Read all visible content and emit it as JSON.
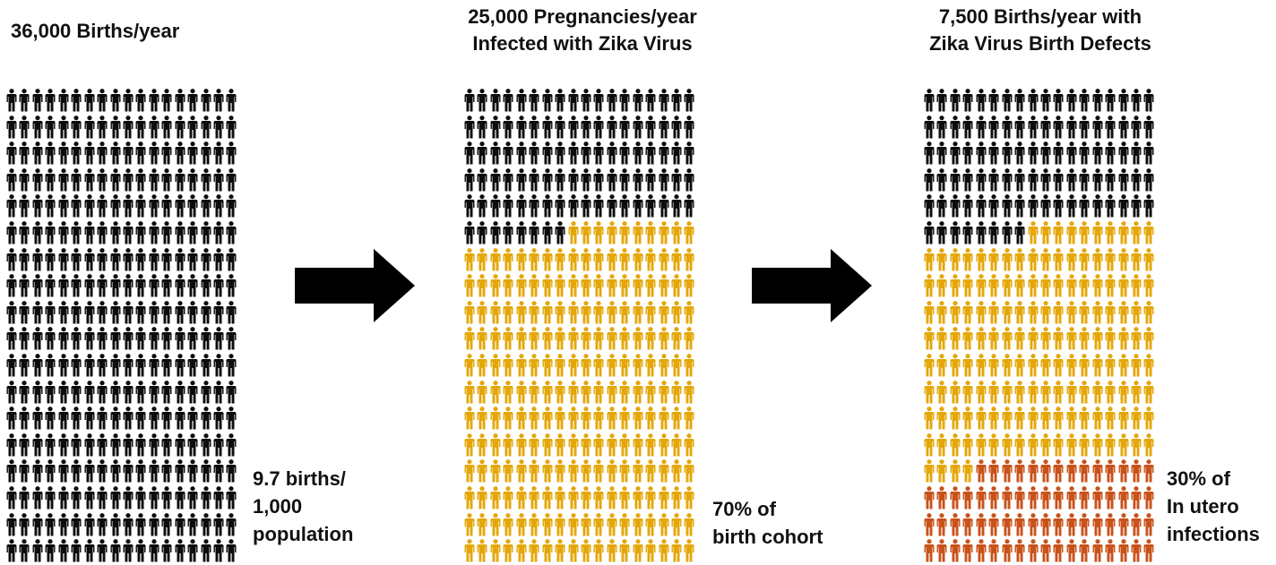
{
  "panels": [
    {
      "title_lines": [
        "36,000 Births/year"
      ],
      "note_lines": [
        "9.7 births/",
        "1,000",
        "population"
      ],
      "rows": 18,
      "columns": 18,
      "segments": [
        {
          "color": "#0d0d0d",
          "count": 324
        }
      ]
    },
    {
      "title_lines": [
        "25,000 Pregnancies/year",
        "Infected with Zika Virus"
      ],
      "note_lines": [
        "70% of",
        "birth cohort"
      ],
      "rows": 18,
      "columns": 18,
      "segments": [
        {
          "color": "#0d0d0d",
          "count": 98
        },
        {
          "color": "#e4a70a",
          "count": 226
        }
      ]
    },
    {
      "title_lines": [
        "7,500 Births/year with",
        "Zika Virus Birth Defects"
      ],
      "note_lines": [
        "30% of",
        "In utero",
        "infections"
      ],
      "rows": 18,
      "columns": 18,
      "segments": [
        {
          "color": "#0d0d0d",
          "count": 98
        },
        {
          "color": "#e4a70a",
          "count": 158
        },
        {
          "color": "#c8521a",
          "count": 68
        }
      ]
    }
  ],
  "arrow_color": "#000000",
  "icon": "person-icon"
}
